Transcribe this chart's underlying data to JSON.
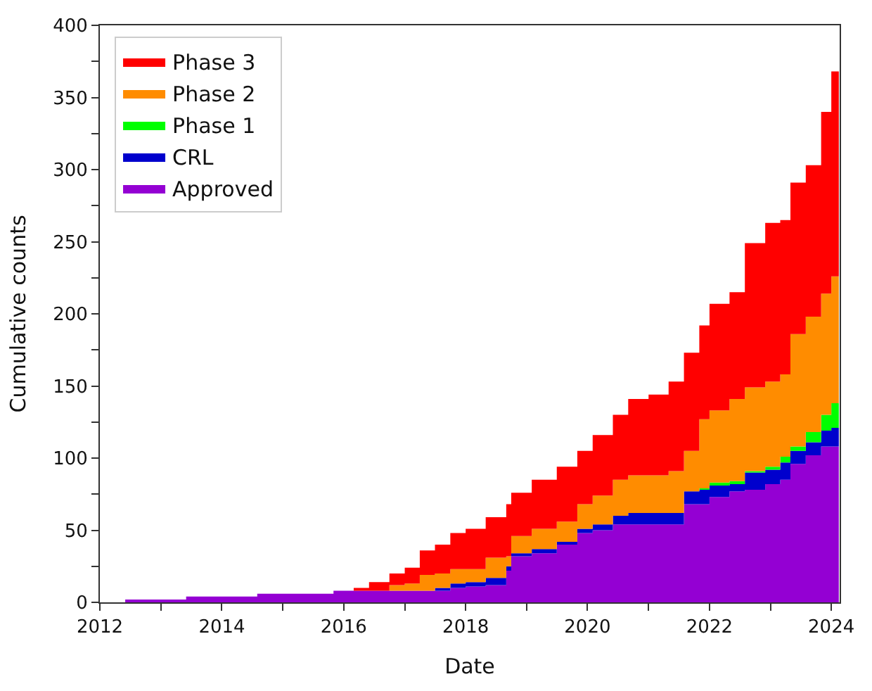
{
  "chart_data": {
    "type": "area",
    "stacked": true,
    "xlabel": "Date",
    "ylabel": "Cumulative counts",
    "legend": "top left",
    "x": [
      "2012-06",
      "2013-06",
      "2014-08",
      "2015-11",
      "2016-03",
      "2016-06",
      "2016-10",
      "2017-01",
      "2017-04",
      "2017-07",
      "2017-10",
      "2018-01",
      "2018-05",
      "2018-09",
      "2018-10",
      "2019-02",
      "2019-07",
      "2019-11",
      "2020-02",
      "2020-06",
      "2020-09",
      "2021-01",
      "2021-05",
      "2021-08",
      "2021-11",
      "2022-01",
      "2022-05",
      "2022-08",
      "2022-12",
      "2023-03",
      "2023-05",
      "2023-08",
      "2023-11",
      "2024-01",
      "2024-02-15"
    ],
    "xlim": [
      "2012-01-01",
      "2024-02-20"
    ],
    "xticks": [
      {
        "value": "2012-01-01",
        "label": "2012"
      },
      {
        "value": "2013-01-01",
        "label": null
      },
      {
        "value": "2014-01-01",
        "label": "2014"
      },
      {
        "value": "2015-01-01",
        "label": null
      },
      {
        "value": "2016-01-01",
        "label": "2016"
      },
      {
        "value": "2017-01-01",
        "label": null
      },
      {
        "value": "2018-01-01",
        "label": "2018"
      },
      {
        "value": "2019-01-01",
        "label": null
      },
      {
        "value": "2020-01-01",
        "label": "2020"
      },
      {
        "value": "2021-01-01",
        "label": null
      },
      {
        "value": "2022-01-01",
        "label": "2022"
      },
      {
        "value": "2023-01-01",
        "label": null
      },
      {
        "value": "2024-01-01",
        "label": "2024"
      }
    ],
    "ylim": [
      0,
      400
    ],
    "yticks": [
      0,
      {
        "value": 25,
        "label": null
      },
      50,
      {
        "value": 75,
        "label": null
      },
      100,
      {
        "value": 125,
        "label": null
      },
      150,
      {
        "value": 175,
        "label": null
      },
      200,
      {
        "value": 225,
        "label": null
      },
      250,
      {
        "value": 275,
        "label": null
      },
      300,
      {
        "value": 325,
        "label": null
      },
      350,
      {
        "value": 375,
        "label": null
      },
      400
    ],
    "series": [
      {
        "name": "Approved",
        "color": "#9400d3",
        "values": [
          2,
          4,
          6,
          8,
          8,
          8,
          8,
          8,
          8,
          8,
          10,
          11,
          12,
          22,
          32,
          34,
          40,
          48,
          50,
          54,
          54,
          54,
          54,
          68,
          68,
          73,
          77,
          78,
          82,
          85,
          96,
          102,
          108,
          108,
          108
        ]
      },
      {
        "name": "CRL",
        "color": "#0000cd",
        "values": [
          0,
          0,
          0,
          0,
          0,
          0,
          0,
          0,
          0,
          2,
          3,
          3,
          5,
          3,
          2,
          3,
          2,
          3,
          4,
          6,
          8,
          8,
          8,
          9,
          10,
          8,
          5,
          12,
          10,
          12,
          9,
          9,
          11,
          13,
          13
        ]
      },
      {
        "name": "Phase 1",
        "color": "#00ff00",
        "values": [
          0,
          0,
          0,
          0,
          0,
          0,
          0,
          0,
          0,
          0,
          0,
          0,
          0,
          0,
          0,
          0,
          0,
          0,
          0,
          0,
          0,
          0,
          0,
          0,
          1,
          2,
          2,
          1,
          2,
          4,
          3,
          7,
          11,
          17,
          17
        ]
      },
      {
        "name": "Phase 2",
        "color": "#ff8c00",
        "values": [
          0,
          0,
          0,
          0,
          0,
          0,
          4,
          5,
          11,
          10,
          10,
          9,
          14,
          7,
          12,
          14,
          14,
          17,
          20,
          25,
          26,
          26,
          29,
          28,
          48,
          50,
          57,
          58,
          59,
          57,
          78,
          80,
          84,
          88,
          88
        ]
      },
      {
        "name": "Phase 3",
        "color": "#ff0000",
        "values": [
          0,
          0,
          0,
          0,
          2,
          6,
          8,
          11,
          17,
          20,
          25,
          28,
          28,
          36,
          30,
          34,
          38,
          37,
          42,
          45,
          53,
          56,
          62,
          68,
          65,
          74,
          74,
          100,
          110,
          107,
          105,
          105,
          126,
          142,
          142
        ]
      }
    ]
  }
}
